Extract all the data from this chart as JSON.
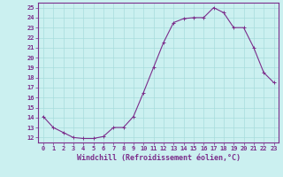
{
  "hours": [
    0,
    1,
    2,
    3,
    4,
    5,
    6,
    7,
    8,
    9,
    10,
    11,
    12,
    13,
    14,
    15,
    16,
    17,
    18,
    19,
    20,
    21,
    22,
    23
  ],
  "values": [
    14.1,
    13.0,
    12.5,
    12.0,
    11.9,
    11.9,
    12.1,
    13.0,
    13.0,
    14.1,
    16.5,
    19.0,
    21.5,
    23.5,
    23.9,
    24.0,
    24.0,
    25.0,
    24.5,
    23.0,
    23.0,
    21.0,
    18.5,
    17.5
  ],
  "line_color": "#7B2D8B",
  "marker": "+",
  "bg_color": "#CBF0F0",
  "grid_color": "#A8DCDC",
  "xlabel": "Windchill (Refroidissement éolien,°C)",
  "ylim": [
    11.5,
    25.5
  ],
  "yticks": [
    12,
    13,
    14,
    15,
    16,
    17,
    18,
    19,
    20,
    21,
    22,
    23,
    24,
    25
  ],
  "xticks": [
    0,
    1,
    2,
    3,
    4,
    5,
    6,
    7,
    8,
    9,
    10,
    11,
    12,
    13,
    14,
    15,
    16,
    17,
    18,
    19,
    20,
    21,
    22,
    23
  ],
  "tick_color": "#7B2D8B",
  "tick_fontsize": 5.0,
  "xlabel_fontsize": 6.0,
  "xlim_left": -0.5,
  "xlim_right": 23.5
}
